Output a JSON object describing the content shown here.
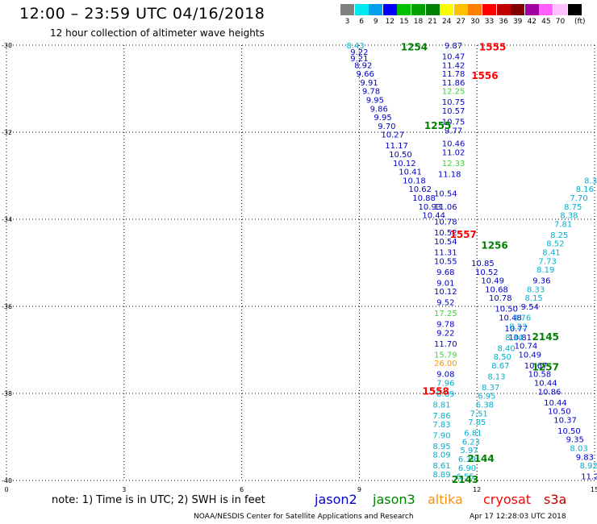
{
  "title": "12:00 – 23:59 UTC 04/16/2018",
  "subtitle": "12 hour collection of altimeter wave heights",
  "legend": {
    "unit": "(ft)",
    "bins": [
      {
        "label": "3",
        "color": "#808080"
      },
      {
        "label": "6",
        "color": "#00e8f0"
      },
      {
        "label": "9",
        "color": "#00a0f0"
      },
      {
        "label": "12",
        "color": "#0000ff"
      },
      {
        "label": "15",
        "color": "#00c000"
      },
      {
        "label": "18",
        "color": "#00a000"
      },
      {
        "label": "21",
        "color": "#008000"
      },
      {
        "label": "24",
        "color": "#ffff00"
      },
      {
        "label": "27",
        "color": "#ffc000"
      },
      {
        "label": "30",
        "color": "#ff8000"
      },
      {
        "label": "33",
        "color": "#ff0000"
      },
      {
        "label": "36",
        "color": "#c00000"
      },
      {
        "label": "39",
        "color": "#800000"
      },
      {
        "label": "42",
        "color": "#a000a0"
      },
      {
        "label": "45",
        "color": "#ff60ff"
      },
      {
        "label": "70",
        "color": "#ffc0ff"
      },
      {
        "label": "",
        "color": "#000000"
      }
    ]
  },
  "axes": {
    "y_ticks": [
      "-30",
      "-32",
      "-34",
      "-36",
      "-38",
      "-40"
    ],
    "x_ticks": [
      "0",
      "3",
      "6",
      "9",
      "12",
      "15"
    ],
    "xlim": [
      0,
      15
    ],
    "ylim": [
      -40,
      -30
    ],
    "grid": true
  },
  "note": "note: 1) Time is in UTC; 2) SWH is in feet",
  "satellites": [
    {
      "name": "jason2",
      "color": "#0000c8"
    },
    {
      "name": "jason3",
      "color": "#008000"
    },
    {
      "name": "altika",
      "color": "#ff9000"
    },
    {
      "name": "cryosat",
      "color": "#ff0000"
    },
    {
      "name": "s3a",
      "color": "#c00000"
    }
  ],
  "footer_left": "NOAA/NESDIS Center for Satellite Applications and Research",
  "footer_right": "Apr 17 12:28:03 UTC 2018",
  "chart_data": {
    "type": "scatter",
    "colors": {
      "jason2": "#0000c8",
      "jason3": "#008000",
      "lightgreen": "#40d040",
      "cyan": "#00b0d0",
      "altika": "#ff9000",
      "cryosat": "#ff0000"
    },
    "time_labels": [
      {
        "text": "1254",
        "lon": 10.4,
        "lat": -30.05,
        "sat": "jason3"
      },
      {
        "text": "1555",
        "lon": 12.4,
        "lat": -30.05,
        "sat": "cryosat"
      },
      {
        "text": "1556",
        "lon": 12.2,
        "lat": -30.7,
        "sat": "cryosat"
      },
      {
        "text": "1255",
        "lon": 11.0,
        "lat": -31.85,
        "sat": "jason3"
      },
      {
        "text": "1557",
        "lon": 11.65,
        "lat": -34.35,
        "sat": "cryosat"
      },
      {
        "text": "1256",
        "lon": 12.45,
        "lat": -34.6,
        "sat": "jason3"
      },
      {
        "text": "2145",
        "lon": 13.75,
        "lat": -36.7,
        "sat": "jason3"
      },
      {
        "text": "1257",
        "lon": 13.75,
        "lat": -37.4,
        "sat": "jason3"
      },
      {
        "text": "1558",
        "lon": 10.95,
        "lat": -37.95,
        "sat": "cryosat"
      },
      {
        "text": "2144",
        "lon": 12.1,
        "lat": -39.5,
        "sat": "jason3"
      },
      {
        "text": "2143",
        "lon": 11.7,
        "lat": -39.98,
        "sat": "jason3"
      }
    ],
    "track_vertical": [
      {
        "v": "9.87",
        "lon": 11.4,
        "lat": -30.0,
        "c": "jason2"
      },
      {
        "v": "10.47",
        "lon": 11.4,
        "lat": -30.25,
        "c": "jason2"
      },
      {
        "v": "11.42",
        "lon": 11.4,
        "lat": -30.45,
        "c": "jason2"
      },
      {
        "v": "11.78",
        "lon": 11.4,
        "lat": -30.65,
        "c": "jason2"
      },
      {
        "v": "11.86",
        "lon": 11.4,
        "lat": -30.85,
        "c": "jason2"
      },
      {
        "v": "12.25",
        "lon": 11.4,
        "lat": -31.05,
        "c": "lightgreen"
      },
      {
        "v": "10.75",
        "lon": 11.4,
        "lat": -31.3,
        "c": "jason2"
      },
      {
        "v": "10.57",
        "lon": 11.4,
        "lat": -31.5,
        "c": "jason2"
      },
      {
        "v": "10.75",
        "lon": 11.4,
        "lat": -31.75,
        "c": "jason2"
      },
      {
        "v": "9.77",
        "lon": 11.4,
        "lat": -31.95,
        "c": "jason2"
      },
      {
        "v": "10.46",
        "lon": 11.4,
        "lat": -32.25,
        "c": "jason2"
      },
      {
        "v": "11.02",
        "lon": 11.4,
        "lat": -32.45,
        "c": "jason2"
      },
      {
        "v": "12.33",
        "lon": 11.4,
        "lat": -32.7,
        "c": "lightgreen"
      },
      {
        "v": "11.18",
        "lon": 11.3,
        "lat": -32.95,
        "c": "jason2"
      },
      {
        "v": "10.54",
        "lon": 11.2,
        "lat": -33.4,
        "c": "jason2"
      },
      {
        "v": "11.06",
        "lon": 11.2,
        "lat": -33.7,
        "c": "jason2"
      },
      {
        "v": "10.78",
        "lon": 11.2,
        "lat": -34.05,
        "c": "jason2"
      },
      {
        "v": "10.52",
        "lon": 11.2,
        "lat": -34.3,
        "c": "jason2"
      },
      {
        "v": "10.54",
        "lon": 11.2,
        "lat": -34.5,
        "c": "jason2"
      },
      {
        "v": "11.31",
        "lon": 11.2,
        "lat": -34.75,
        "c": "jason2"
      },
      {
        "v": "10.55",
        "lon": 11.2,
        "lat": -34.95,
        "c": "jason2"
      },
      {
        "v": "9.68",
        "lon": 11.2,
        "lat": -35.2,
        "c": "jason2"
      },
      {
        "v": "9.01",
        "lon": 11.2,
        "lat": -35.45,
        "c": "jason2"
      },
      {
        "v": "10.12",
        "lon": 11.2,
        "lat": -35.65,
        "c": "jason2"
      },
      {
        "v": "9.52",
        "lon": 11.2,
        "lat": -35.9,
        "c": "jason2"
      },
      {
        "v": "17.25",
        "lon": 11.2,
        "lat": -36.15,
        "c": "lightgreen"
      },
      {
        "v": "9.78",
        "lon": 11.2,
        "lat": -36.4,
        "c": "jason2"
      },
      {
        "v": "9.22",
        "lon": 11.2,
        "lat": -36.6,
        "c": "jason2"
      },
      {
        "v": "11.70",
        "lon": 11.2,
        "lat": -36.85,
        "c": "jason2"
      },
      {
        "v": "15.79",
        "lon": 11.2,
        "lat": -37.1,
        "c": "lightgreen"
      },
      {
        "v": "26.00",
        "lon": 11.2,
        "lat": -37.3,
        "c": "altika"
      },
      {
        "v": "9.08",
        "lon": 11.2,
        "lat": -37.55,
        "c": "jason2"
      },
      {
        "v": "7.96",
        "lon": 11.2,
        "lat": -37.75,
        "c": "cyan"
      },
      {
        "v": "8.89",
        "lon": 11.2,
        "lat": -38.0,
        "c": "cyan"
      },
      {
        "v": "8.81",
        "lon": 11.1,
        "lat": -38.25,
        "c": "cyan"
      },
      {
        "v": "7.86",
        "lon": 11.1,
        "lat": -38.5,
        "c": "cyan"
      },
      {
        "v": "7.83",
        "lon": 11.1,
        "lat": -38.7,
        "c": "cyan"
      },
      {
        "v": "7.90",
        "lon": 11.1,
        "lat": -38.95,
        "c": "cyan"
      },
      {
        "v": "8.95",
        "lon": 11.1,
        "lat": -39.2,
        "c": "cyan"
      },
      {
        "v": "8.09",
        "lon": 11.1,
        "lat": -39.4,
        "c": "cyan"
      },
      {
        "v": "8.61",
        "lon": 11.1,
        "lat": -39.65,
        "c": "cyan"
      },
      {
        "v": "8.89",
        "lon": 11.1,
        "lat": -39.85,
        "c": "cyan"
      }
    ],
    "track_rising": [
      {
        "v": "6.55",
        "lon": 11.7,
        "lat": -39.9,
        "c": "cyan"
      },
      {
        "v": "6.90",
        "lon": 11.75,
        "lat": -39.7,
        "c": "cyan"
      },
      {
        "v": "6.39",
        "lon": 11.75,
        "lat": -39.5,
        "c": "cyan"
      },
      {
        "v": "5.97",
        "lon": 11.8,
        "lat": -39.3,
        "c": "cyan"
      },
      {
        "v": "6.23",
        "lon": 11.85,
        "lat": -39.1,
        "c": "cyan"
      },
      {
        "v": "6.81",
        "lon": 11.9,
        "lat": -38.9,
        "c": "cyan"
      },
      {
        "v": "7.85",
        "lon": 12.0,
        "lat": -38.65,
        "c": "cyan"
      },
      {
        "v": "7.51",
        "lon": 12.05,
        "lat": -38.45,
        "c": "cyan"
      },
      {
        "v": "6.38",
        "lon": 12.2,
        "lat": -38.25,
        "c": "cyan"
      },
      {
        "v": "6.95",
        "lon": 12.25,
        "lat": -38.05,
        "c": "cyan"
      },
      {
        "v": "8.37",
        "lon": 12.35,
        "lat": -37.85,
        "c": "cyan"
      },
      {
        "v": "8.13",
        "lon": 12.5,
        "lat": -37.6,
        "c": "cyan"
      },
      {
        "v": "8.67",
        "lon": 12.6,
        "lat": -37.35,
        "c": "cyan"
      },
      {
        "v": "8.50",
        "lon": 12.65,
        "lat": -37.15,
        "c": "cyan"
      },
      {
        "v": "8.40",
        "lon": 12.75,
        "lat": -36.95,
        "c": "cyan"
      },
      {
        "v": "8.34",
        "lon": 12.95,
        "lat": -36.7,
        "c": "cyan"
      },
      {
        "v": "8.23",
        "lon": 13.05,
        "lat": -36.45,
        "c": "cyan"
      },
      {
        "v": "8.76",
        "lon": 13.15,
        "lat": -36.25,
        "c": "cyan"
      },
      {
        "v": "9.54",
        "lon": 13.35,
        "lat": -36.0,
        "c": "jason2"
      },
      {
        "v": "8.15",
        "lon": 13.45,
        "lat": -35.8,
        "c": "cyan"
      },
      {
        "v": "8.33",
        "lon": 13.5,
        "lat": -35.6,
        "c": "cyan"
      },
      {
        "v": "9.36",
        "lon": 13.65,
        "lat": -35.4,
        "c": "jason2"
      },
      {
        "v": "8.19",
        "lon": 13.75,
        "lat": -35.15,
        "c": "cyan"
      },
      {
        "v": "7.73",
        "lon": 13.8,
        "lat": -34.95,
        "c": "cyan"
      },
      {
        "v": "8.41",
        "lon": 13.9,
        "lat": -34.75,
        "c": "cyan"
      },
      {
        "v": "8.52",
        "lon": 14.0,
        "lat": -34.55,
        "c": "cyan"
      },
      {
        "v": "8.25",
        "lon": 14.1,
        "lat": -34.35,
        "c": "cyan"
      },
      {
        "v": "7.81",
        "lon": 14.2,
        "lat": -34.1,
        "c": "cyan"
      },
      {
        "v": "8.38",
        "lon": 14.35,
        "lat": -33.9,
        "c": "cyan"
      },
      {
        "v": "8.75",
        "lon": 14.45,
        "lat": -33.7,
        "c": "cyan"
      },
      {
        "v": "7.70",
        "lon": 14.6,
        "lat": -33.5,
        "c": "cyan"
      },
      {
        "v": "8.16",
        "lon": 14.75,
        "lat": -33.3,
        "c": "cyan"
      },
      {
        "v": "8.3",
        "lon": 14.9,
        "lat": -33.1,
        "c": "cyan"
      }
    ],
    "track_upper_left": [
      {
        "v": "8.43",
        "lon": 8.9,
        "lat": -30.0,
        "c": "cyan"
      },
      {
        "v": "9.22",
        "lon": 9.0,
        "lat": -30.15,
        "c": "jason2"
      },
      {
        "v": "9.21",
        "lon": 9.0,
        "lat": -30.3,
        "c": "jason2"
      },
      {
        "v": "8.92",
        "lon": 9.1,
        "lat": -30.45,
        "c": "jason2"
      },
      {
        "v": "9.66",
        "lon": 9.15,
        "lat": -30.65,
        "c": "jason2"
      },
      {
        "v": "9.91",
        "lon": 9.25,
        "lat": -30.85,
        "c": "jason2"
      },
      {
        "v": "9.78",
        "lon": 9.3,
        "lat": -31.05,
        "c": "jason2"
      },
      {
        "v": "9.95",
        "lon": 9.4,
        "lat": -31.25,
        "c": "jason2"
      },
      {
        "v": "9.86",
        "lon": 9.5,
        "lat": -31.45,
        "c": "jason2"
      },
      {
        "v": "9.95",
        "lon": 9.6,
        "lat": -31.65,
        "c": "jason2"
      },
      {
        "v": "9.70",
        "lon": 9.7,
        "lat": -31.85,
        "c": "jason2"
      },
      {
        "v": "10.27",
        "lon": 9.85,
        "lat": -32.05,
        "c": "jason2"
      },
      {
        "v": "11.17",
        "lon": 9.95,
        "lat": -32.3,
        "c": "jason2"
      },
      {
        "v": "10.50",
        "lon": 10.05,
        "lat": -32.5,
        "c": "jason2"
      },
      {
        "v": "10.12",
        "lon": 10.15,
        "lat": -32.7,
        "c": "jason2"
      },
      {
        "v": "10.41",
        "lon": 10.3,
        "lat": -32.9,
        "c": "jason2"
      },
      {
        "v": "10.18",
        "lon": 10.4,
        "lat": -33.1,
        "c": "jason2"
      },
      {
        "v": "10.62",
        "lon": 10.55,
        "lat": -33.3,
        "c": "jason2"
      },
      {
        "v": "10.88",
        "lon": 10.65,
        "lat": -33.5,
        "c": "jason2"
      },
      {
        "v": "10.93",
        "lon": 10.8,
        "lat": -33.7,
        "c": "jason2"
      },
      {
        "v": "10.44",
        "lon": 10.9,
        "lat": -33.9,
        "c": "jason2"
      }
    ],
    "track_lower_right": [
      {
        "v": "10.85",
        "lon": 12.15,
        "lat": -35.0,
        "c": "jason2"
      },
      {
        "v": "10.52",
        "lon": 12.25,
        "lat": -35.2,
        "c": "jason2"
      },
      {
        "v": "10.49",
        "lon": 12.4,
        "lat": -35.4,
        "c": "jason2"
      },
      {
        "v": "10.68",
        "lon": 12.5,
        "lat": -35.6,
        "c": "jason2"
      },
      {
        "v": "10.78",
        "lon": 12.6,
        "lat": -35.8,
        "c": "jason2"
      },
      {
        "v": "10.50",
        "lon": 12.75,
        "lat": -36.05,
        "c": "jason2"
      },
      {
        "v": "10.48",
        "lon": 12.85,
        "lat": -36.25,
        "c": "jason2"
      },
      {
        "v": "10.77",
        "lon": 13.0,
        "lat": -36.5,
        "c": "jason2"
      },
      {
        "v": "10.81",
        "lon": 13.1,
        "lat": -36.7,
        "c": "jason2"
      },
      {
        "v": "10.74",
        "lon": 13.25,
        "lat": -36.9,
        "c": "jason2"
      },
      {
        "v": "10.49",
        "lon": 13.35,
        "lat": -37.1,
        "c": "jason2"
      },
      {
        "v": "10.67",
        "lon": 13.5,
        "lat": -37.35,
        "c": "jason2"
      },
      {
        "v": "10.58",
        "lon": 13.6,
        "lat": -37.55,
        "c": "jason2"
      },
      {
        "v": "10.44",
        "lon": 13.75,
        "lat": -37.75,
        "c": "jason2"
      },
      {
        "v": "10.86",
        "lon": 13.85,
        "lat": -37.95,
        "c": "jason2"
      },
      {
        "v": "10.44",
        "lon": 14.0,
        "lat": -38.2,
        "c": "jason2"
      },
      {
        "v": "10.50",
        "lon": 14.1,
        "lat": -38.4,
        "c": "jason2"
      },
      {
        "v": "10.37",
        "lon": 14.25,
        "lat": -38.6,
        "c": "jason2"
      },
      {
        "v": "10.50",
        "lon": 14.35,
        "lat": -38.85,
        "c": "jason2"
      },
      {
        "v": "9.35",
        "lon": 14.5,
        "lat": -39.05,
        "c": "jason2"
      },
      {
        "v": "8.03",
        "lon": 14.6,
        "lat": -39.25,
        "c": "cyan"
      },
      {
        "v": "9.83",
        "lon": 14.75,
        "lat": -39.45,
        "c": "jason2"
      },
      {
        "v": "8.92",
        "lon": 14.85,
        "lat": -39.65,
        "c": "cyan"
      },
      {
        "v": "11.20",
        "lon": 14.95,
        "lat": -39.9,
        "c": "jason2"
      }
    ]
  }
}
